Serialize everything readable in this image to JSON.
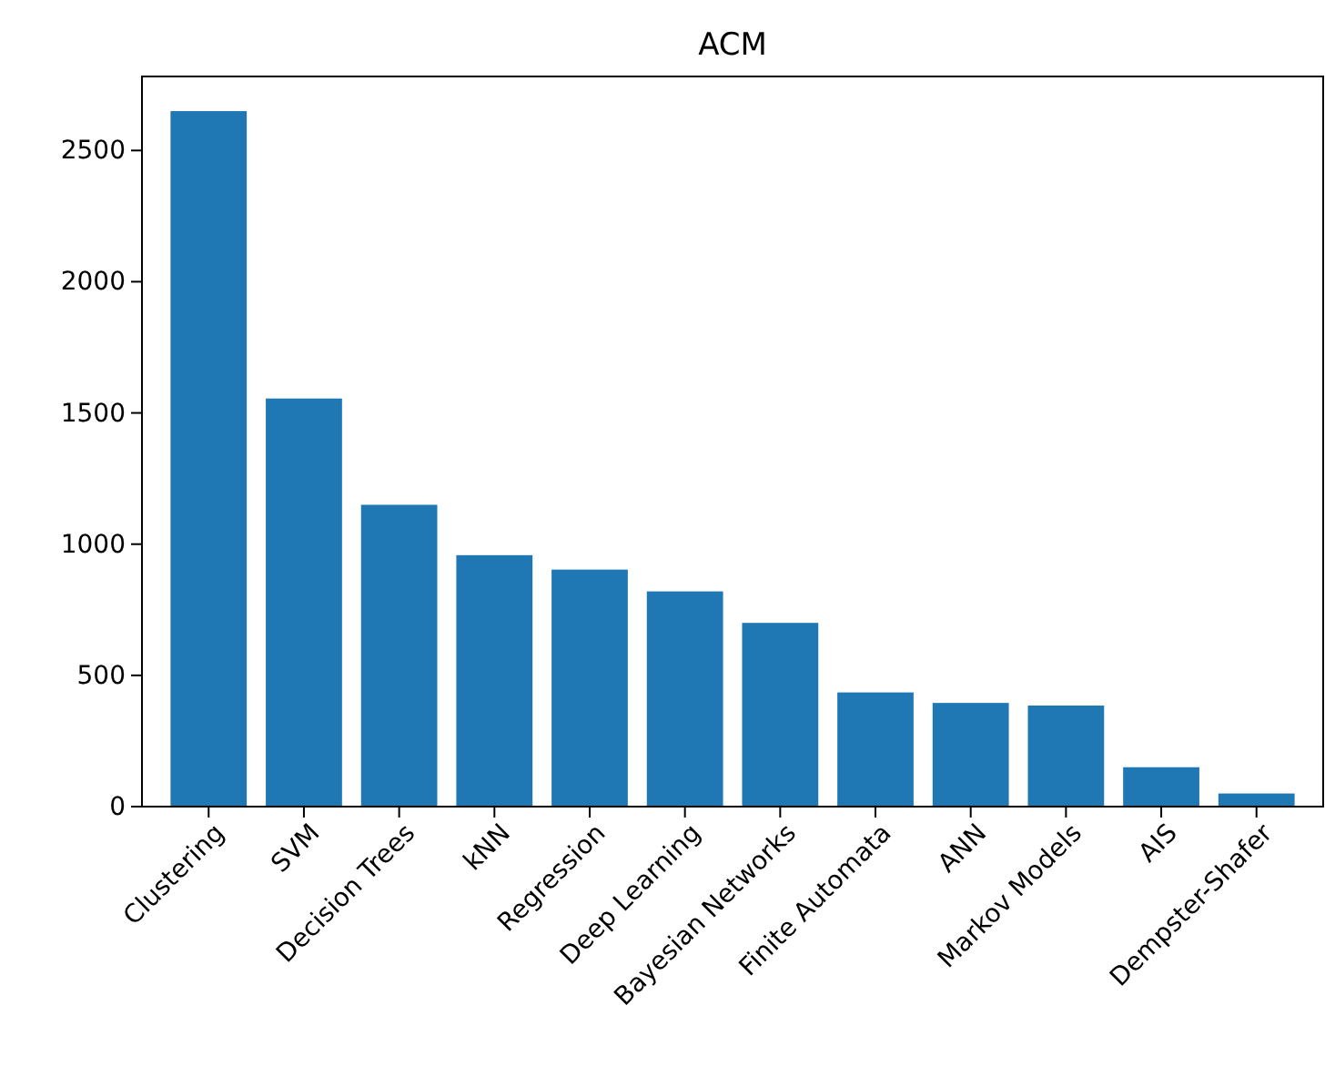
{
  "chart_data": {
    "type": "bar",
    "title": "ACM",
    "categories": [
      "Clustering",
      "SVM",
      "Decision Trees",
      "kNN",
      "Regression",
      "Deep Learning",
      "Bayesian Networks",
      "Finite Automata",
      "ANN",
      "Markov Models",
      "AIS",
      "Dempster-Shafer"
    ],
    "values": [
      2650,
      1555,
      1150,
      958,
      903,
      820,
      700,
      435,
      395,
      385,
      150,
      50
    ],
    "color": "#1f77b4",
    "ylim": [
      0,
      2782
    ],
    "yticks": [
      0,
      500,
      1000,
      1500,
      2000,
      2500
    ],
    "grid": false
  }
}
